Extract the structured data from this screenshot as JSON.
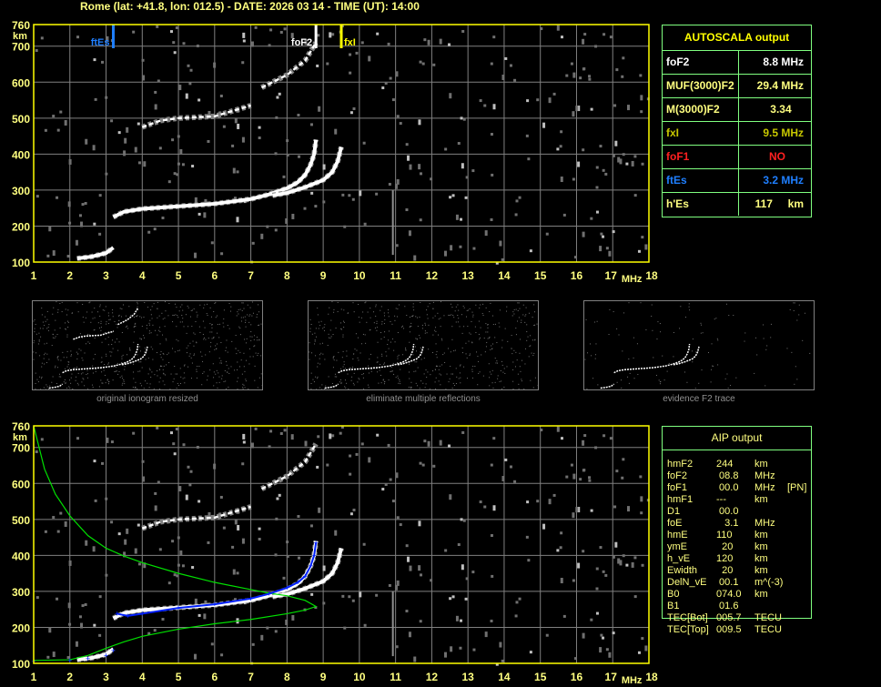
{
  "header": {
    "title": "Rome (lat: +41.8, lon: 012.5) - DATE: 2026 03 14 - TIME (UT): 14:00"
  },
  "colors": {
    "axis": "#ffff00",
    "text": "#ffff80",
    "grid": "#808080",
    "ftEs": "#1f7fff",
    "foF2": "#ffffff",
    "fxI": "#ffff00",
    "foF1": "#ff2020",
    "profile": "#00e000",
    "fit": "#0020ff",
    "panel_border": "#80ff80"
  },
  "chart_data": [
    {
      "type": "scatter",
      "x_range": [
        1,
        18
      ],
      "y_range": [
        100,
        760
      ],
      "x_ticks": [
        "1",
        "2",
        "3",
        "4",
        "5",
        "6",
        "7",
        "8",
        "9",
        "10",
        "11",
        "12",
        "13",
        "14",
        "15",
        "16",
        "17",
        "18"
      ],
      "y_ticks": [
        "760",
        "700",
        "600",
        "500",
        "400",
        "300",
        "200",
        "100"
      ],
      "xlabel": "MHz",
      "ylabel": "km",
      "grid": true,
      "markers": [
        {
          "label": "ftEs",
          "freq": 3.2,
          "color": "#1f7fff"
        },
        {
          "label": "foF2",
          "freq": 8.8,
          "color": "#ffffff"
        },
        {
          "label": "fxI",
          "freq": 9.5,
          "color": "#ffff00"
        }
      ],
      "traces": [
        {
          "points": [
            [
              2.2,
              110
            ],
            [
              2.6,
              115
            ],
            [
              3.0,
              125
            ],
            [
              3.2,
              140
            ]
          ]
        },
        {
          "points": [
            [
              3.2,
              225
            ],
            [
              3.5,
              240
            ],
            [
              4,
              248
            ],
            [
              5,
              255
            ],
            [
              6,
              262
            ],
            [
              7,
              275
            ],
            [
              7.5,
              288
            ],
            [
              8,
              305
            ],
            [
              8.3,
              322
            ],
            [
              8.5,
              342
            ],
            [
              8.65,
              370
            ],
            [
              8.75,
              400
            ],
            [
              8.8,
              440
            ]
          ]
        },
        {
          "points": [
            [
              7.6,
              285
            ],
            [
              8,
              292
            ],
            [
              8.5,
              308
            ],
            [
              9,
              328
            ],
            [
              9.25,
              350
            ],
            [
              9.4,
              380
            ],
            [
              9.5,
              420
            ]
          ]
        },
        {
          "points": [
            [
              4,
              475
            ],
            [
              4.5,
              493
            ],
            [
              5,
              500
            ],
            [
              6,
              505
            ],
            [
              6.5,
              520
            ],
            [
              7,
              535
            ]
          ]
        },
        {
          "points": [
            [
              7.3,
              585
            ],
            [
              8,
              620
            ],
            [
              8.5,
              660
            ],
            [
              8.8,
              710
            ]
          ]
        }
      ]
    },
    {
      "type": "line",
      "x_range": [
        1,
        18
      ],
      "y_range": [
        100,
        760
      ],
      "x_ticks": [
        "1",
        "2",
        "3",
        "4",
        "5",
        "6",
        "7",
        "8",
        "9",
        "10",
        "11",
        "12",
        "13",
        "14",
        "15",
        "16",
        "17",
        "18"
      ],
      "y_ticks": [
        "760",
        "700",
        "600",
        "500",
        "400",
        "300",
        "200",
        "100"
      ],
      "xlabel": "MHz",
      "ylabel": "km",
      "grid": true,
      "profile": [
        [
          1,
          760
        ],
        [
          1.3,
          640
        ],
        [
          1.6,
          570
        ],
        [
          2,
          510
        ],
        [
          2.5,
          455
        ],
        [
          3,
          420
        ],
        [
          3.5,
          398
        ],
        [
          4,
          380
        ],
        [
          5,
          350
        ],
        [
          6,
          325
        ],
        [
          7,
          305
        ],
        [
          7.5,
          295
        ],
        [
          8,
          288
        ],
        [
          8.5,
          275
        ],
        [
          8.8,
          258
        ],
        [
          8.5,
          248
        ],
        [
          8,
          238
        ],
        [
          7,
          222
        ],
        [
          6,
          210
        ],
        [
          5,
          195
        ],
        [
          4,
          175
        ],
        [
          3.5,
          160
        ],
        [
          3,
          142
        ],
        [
          2.5,
          122
        ],
        [
          2,
          110
        ],
        [
          1,
          108
        ]
      ],
      "fit": [
        [
          1,
          105
        ],
        [
          2,
          108
        ],
        [
          2.5,
          113
        ],
        [
          3,
          122
        ],
        [
          3.2,
          135
        ],
        [
          3.3,
          238
        ],
        [
          3.6,
          232
        ],
        [
          4,
          238
        ],
        [
          5,
          254
        ],
        [
          6,
          264
        ],
        [
          7,
          280
        ],
        [
          7.5,
          293
        ],
        [
          8,
          310
        ],
        [
          8.3,
          325
        ],
        [
          8.5,
          342
        ],
        [
          8.65,
          370
        ],
        [
          8.75,
          400
        ],
        [
          8.8,
          435
        ]
      ]
    }
  ],
  "thumbnails": [
    {
      "caption": "original ionogram resized"
    },
    {
      "caption": "eliminate multiple reflections"
    },
    {
      "caption": "evidence F2 trace"
    }
  ],
  "autoscala": {
    "title": "AUTOSCALA output",
    "rows": [
      {
        "label": "foF2",
        "value": "8.8 MHz",
        "color": "#ffffff"
      },
      {
        "label": "MUF(3000)F2",
        "value": "29.4 MHz",
        "color": "#ffff80"
      },
      {
        "label": "M(3000)F2",
        "value": "3.34    ",
        "color": "#ffff80"
      },
      {
        "label": "fxI",
        "value": "9.5 MHz",
        "color": "#c8c800"
      },
      {
        "label": "foF1",
        "value": "NO      ",
        "color": "#ff2020"
      },
      {
        "label": "ftEs",
        "value": "3.2 MHz",
        "color": "#1f7fff"
      },
      {
        "label": "h'Es",
        "value": "117     km",
        "color": "#ffff80"
      }
    ]
  },
  "aip": {
    "title": "AIP output",
    "rows": [
      {
        "name": "hmF2",
        "value": "244",
        "unit": "km",
        "extra": ""
      },
      {
        "name": "foF2",
        "value": " 08.8",
        "unit": "MHz",
        "extra": ""
      },
      {
        "name": "foF1",
        "value": " 00.0",
        "unit": "MHz",
        "extra": "[PN]"
      },
      {
        "name": "hmF1",
        "value": "---",
        "unit": "km",
        "extra": ""
      },
      {
        "name": "D1",
        "value": " 00.0",
        "unit": "",
        "extra": ""
      },
      {
        "name": "foE",
        "value": "   3.1",
        "unit": "MHz",
        "extra": ""
      },
      {
        "name": "hmE",
        "value": "110",
        "unit": "km",
        "extra": ""
      },
      {
        "name": "ymE",
        "value": "  20",
        "unit": "km",
        "extra": ""
      },
      {
        "name": "h_vE",
        "value": "120",
        "unit": "km",
        "extra": ""
      },
      {
        "name": "Ewidth",
        "value": "  20",
        "unit": "km",
        "extra": ""
      },
      {
        "name": "DelN_vE",
        "value": " 00.1",
        "unit": "m^(-3)",
        "extra": ""
      },
      {
        "name": "B0",
        "value": "074.0",
        "unit": "km",
        "extra": ""
      },
      {
        "name": "B1",
        "value": " 01.6",
        "unit": "",
        "extra": ""
      },
      {
        "name": "TEC[Bot]",
        "value": "005.7",
        "unit": "TECU",
        "extra": ""
      },
      {
        "name": "TEC[Top]",
        "value": "009.5",
        "unit": "TECU",
        "extra": ""
      }
    ]
  }
}
